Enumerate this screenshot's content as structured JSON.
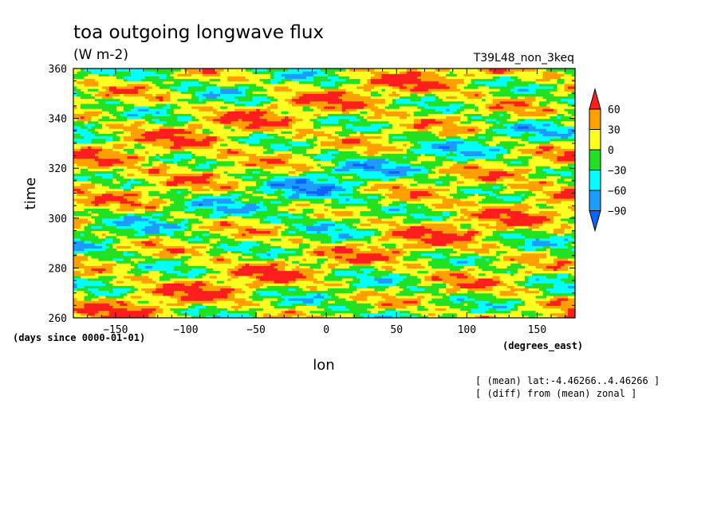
{
  "chart_data": {
    "type": "heatmap",
    "title": "toa outgoing longwave flux",
    "units": "(W m-2)",
    "run_label": "T39L48_non_3keq",
    "xlabel": "lon",
    "ylabel": "time",
    "x_units": "(degrees_east)",
    "y_units": "(days since 0000-01-01)",
    "xlim": [
      -180,
      177
    ],
    "ylim": [
      260,
      360
    ],
    "xticks": [
      -150,
      -100,
      -50,
      0,
      50,
      100,
      150
    ],
    "yticks": [
      260,
      280,
      300,
      320,
      340,
      360
    ],
    "colorbar": {
      "levels": [
        -90,
        -60,
        -30,
        0,
        30,
        60
      ],
      "labels": [
        "60",
        "30",
        "0",
        "-30",
        "-60",
        "-90"
      ],
      "colors": [
        "#0a64ff",
        "#1e9bff",
        "#00ffff",
        "#22e122",
        "#ffff22",
        "#ffa000",
        "#ff1e1e"
      ]
    },
    "notes": [
      "[ (mean) lat:-4.46266..4.46266 ]",
      "[ (diff) from (mean) zonal ]"
    ]
  }
}
